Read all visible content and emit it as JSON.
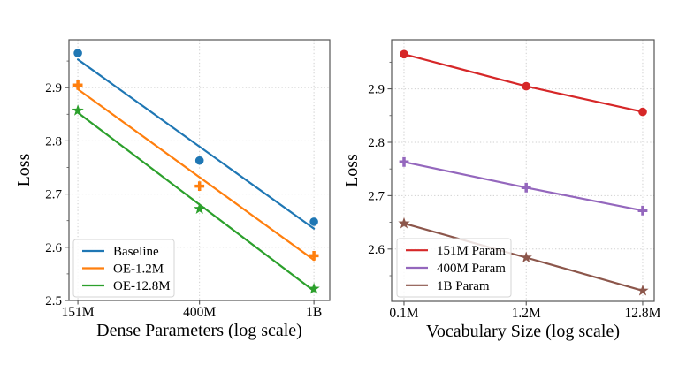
{
  "figure": {
    "background": "#ffffff",
    "text_color": "#000000",
    "spine_color": "#555555",
    "grid_color": "#cfcfcf",
    "legend_border_color": "#d5d5d5",
    "legend_fill": "rgba(255,255,255,0.82)"
  },
  "chart_data": [
    {
      "type": "scatter",
      "title": "",
      "xlabel": "Dense Parameters (log scale)",
      "ylabel": "Loss",
      "xscale": "log",
      "grid": true,
      "legend_position": "lower left",
      "x_tick_labels": [
        "151M",
        "400M",
        "1B"
      ],
      "x_log10": [
        8.179,
        8.602,
        9.0
      ],
      "xlim_log10": [
        8.148,
        9.055
      ],
      "ylim": [
        2.5,
        2.99
      ],
      "ytick_labels": [
        "2.5",
        "2.6",
        "2.7",
        "2.8",
        "2.9"
      ],
      "yticks": [
        2.5,
        2.6,
        2.7,
        2.8,
        2.9
      ],
      "series": [
        {
          "name": "Baseline",
          "color": "#1f77b4",
          "marker": "circle",
          "y": [
            2.965,
            2.763,
            2.648
          ],
          "trend_line": [
            2.953,
            2.635
          ]
        },
        {
          "name": "OE-1.2M",
          "color": "#ff7f0e",
          "marker": "plus",
          "y": [
            2.905,
            2.715,
            2.584
          ],
          "trend_line": [
            2.897,
            2.576
          ]
        },
        {
          "name": "OE-12.8M",
          "color": "#2ca02c",
          "marker": "star",
          "y": [
            2.857,
            2.672,
            2.522
          ],
          "trend_line": [
            2.853,
            2.518
          ]
        }
      ]
    },
    {
      "type": "line",
      "title": "",
      "xlabel": "Vocabulary Size (log scale)",
      "ylabel": "Loss",
      "xscale": "log",
      "grid": true,
      "legend_position": "lower left",
      "x_tick_labels": [
        "0.1M",
        "1.2M",
        "12.8M"
      ],
      "x_log10": [
        -1.0,
        0.0792,
        1.1072
      ],
      "xlim_log10": [
        -1.109,
        1.209
      ],
      "ylim": [
        2.502,
        2.992
      ],
      "ytick_labels": [
        "2.6",
        "2.7",
        "2.8",
        "2.9"
      ],
      "yticks": [
        2.6,
        2.7,
        2.8,
        2.9
      ],
      "series": [
        {
          "name": "151M Param",
          "color": "#d62728",
          "marker": "circle",
          "y": [
            2.965,
            2.905,
            2.857
          ]
        },
        {
          "name": "400M Param",
          "color": "#9467bd",
          "marker": "plus",
          "y": [
            2.763,
            2.715,
            2.672
          ]
        },
        {
          "name": "1B Param",
          "color": "#8c564b",
          "marker": "star",
          "y": [
            2.648,
            2.584,
            2.522
          ]
        }
      ]
    }
  ]
}
